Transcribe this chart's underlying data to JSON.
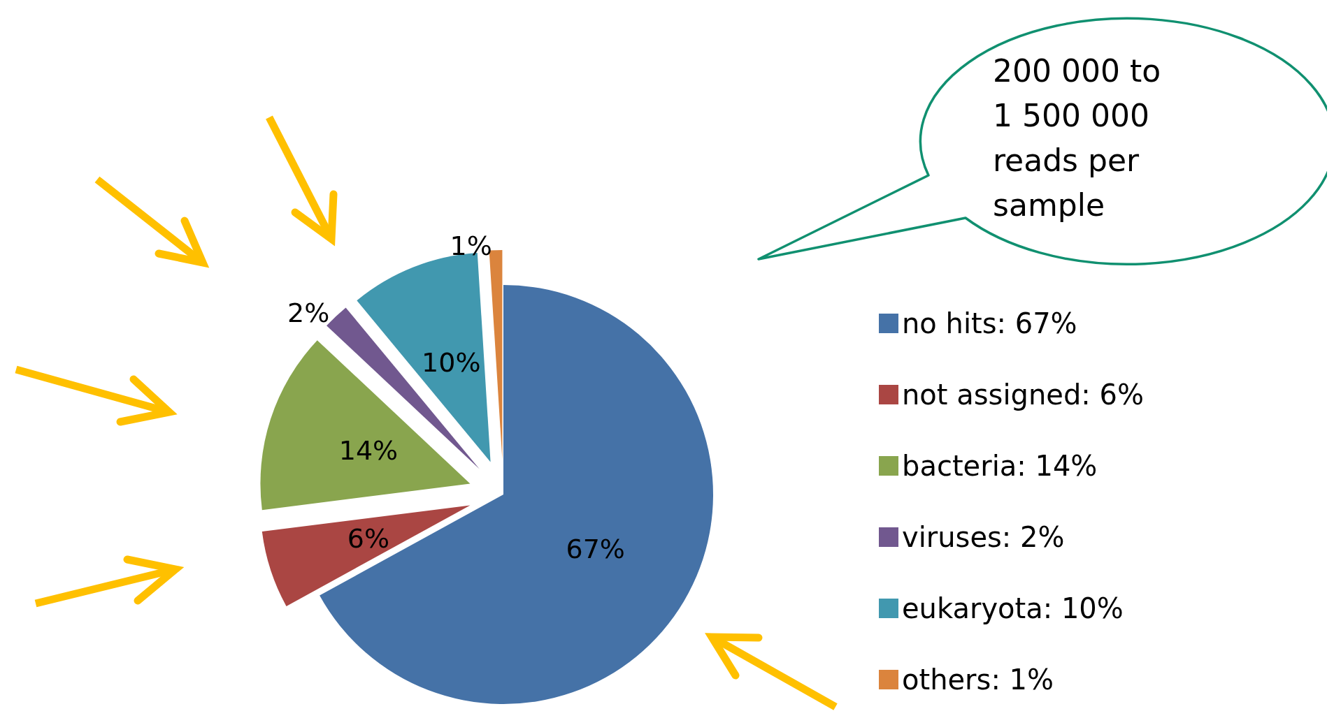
{
  "chart_data": {
    "type": "pie",
    "categories": [
      "no hits",
      "not assigned",
      "bacteria",
      "viruses",
      "eukaryota",
      "others"
    ],
    "values": [
      67,
      6,
      14,
      2,
      10,
      1
    ],
    "colors": [
      "#4572a7",
      "#aa4643",
      "#89a54e",
      "#71588f",
      "#4198af",
      "#db843d"
    ],
    "value_labels": [
      "67%",
      "6%",
      "14%",
      "2%",
      "10%",
      "1%"
    ],
    "legend": "right",
    "annotations": [
      "200 000 to 1 500 000 reads per sample"
    ]
  }
}
